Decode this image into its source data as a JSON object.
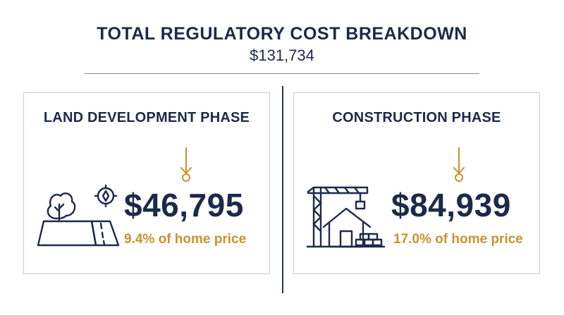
{
  "header": {
    "title": "TOTAL REGULATORY COST BREAKDOWN",
    "total": "$131,734"
  },
  "phases": [
    {
      "title": "LAND DEVELOPMENT PHASE",
      "amount": "$46,795",
      "percent_text": "9.4% of home price",
      "icon": "land-road-tree-icon"
    },
    {
      "title": "CONSTRUCTION PHASE",
      "amount": "$84,939",
      "percent_text": "17.0% of home price",
      "icon": "crane-house-icon"
    }
  ],
  "colors": {
    "navy": "#1b2a4a",
    "gold": "#c8922e",
    "border": "#c9ccd2"
  }
}
